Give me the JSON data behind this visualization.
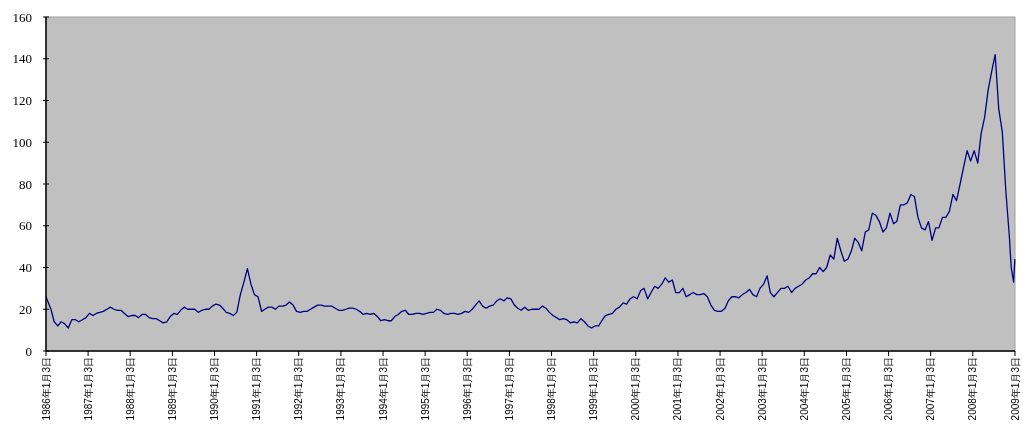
{
  "chart_data": {
    "type": "line",
    "x": [
      "1986-01-03",
      "1986-02-15",
      "1986-03-15",
      "1986-04-15",
      "1986-05-15",
      "1986-06-15",
      "1986-07-15",
      "1986-08-15",
      "1986-09-15",
      "1986-10-15",
      "1986-11-15",
      "1986-12-15",
      "1987-01-15",
      "1987-02-15",
      "1987-03-15",
      "1987-04-15",
      "1987-05-15",
      "1987-06-15",
      "1987-07-15",
      "1987-08-15",
      "1987-09-15",
      "1987-10-15",
      "1987-11-15",
      "1987-12-15",
      "1988-01-15",
      "1988-02-15",
      "1988-03-15",
      "1988-04-15",
      "1988-05-15",
      "1988-06-15",
      "1988-07-15",
      "1988-08-15",
      "1988-09-15",
      "1988-10-15",
      "1988-11-15",
      "1988-12-15",
      "1989-01-15",
      "1989-02-15",
      "1989-03-15",
      "1989-04-15",
      "1989-05-15",
      "1989-06-15",
      "1989-07-15",
      "1989-08-15",
      "1989-09-15",
      "1989-10-15",
      "1989-11-15",
      "1989-12-15",
      "1990-01-15",
      "1990-02-15",
      "1990-03-15",
      "1990-04-15",
      "1990-05-15",
      "1990-06-15",
      "1990-07-15",
      "1990-08-15",
      "1990-09-15",
      "1990-10-15",
      "1990-11-15",
      "1990-12-15",
      "1991-01-15",
      "1991-02-15",
      "1991-03-15",
      "1991-04-15",
      "1991-05-15",
      "1991-06-15",
      "1991-07-15",
      "1991-08-15",
      "1991-09-15",
      "1991-10-15",
      "1991-11-15",
      "1991-12-15",
      "1992-01-15",
      "1992-02-15",
      "1992-03-15",
      "1992-04-15",
      "1992-05-15",
      "1992-06-15",
      "1992-07-15",
      "1992-08-15",
      "1992-09-15",
      "1992-10-15",
      "1992-11-15",
      "1992-12-15",
      "1993-01-15",
      "1993-02-15",
      "1993-03-15",
      "1993-04-15",
      "1993-05-15",
      "1993-06-15",
      "1993-07-15",
      "1993-08-15",
      "1993-09-15",
      "1993-10-15",
      "1993-11-15",
      "1993-12-15",
      "1994-01-15",
      "1994-02-15",
      "1994-03-15",
      "1994-04-15",
      "1994-05-15",
      "1994-06-15",
      "1994-07-15",
      "1994-08-15",
      "1994-09-15",
      "1994-10-15",
      "1994-11-15",
      "1994-12-15",
      "1995-01-15",
      "1995-02-15",
      "1995-03-15",
      "1995-04-15",
      "1995-05-15",
      "1995-06-15",
      "1995-07-15",
      "1995-08-15",
      "1995-09-15",
      "1995-10-15",
      "1995-11-15",
      "1995-12-15",
      "1996-01-15",
      "1996-02-15",
      "1996-03-15",
      "1996-04-15",
      "1996-05-15",
      "1996-06-15",
      "1996-07-15",
      "1996-08-15",
      "1996-09-15",
      "1996-10-15",
      "1996-11-15",
      "1996-12-15",
      "1997-01-15",
      "1997-02-15",
      "1997-03-15",
      "1997-04-15",
      "1997-05-15",
      "1997-06-15",
      "1997-07-15",
      "1997-08-15",
      "1997-09-15",
      "1997-10-15",
      "1997-11-15",
      "1997-12-15",
      "1998-01-15",
      "1998-02-15",
      "1998-03-15",
      "1998-04-15",
      "1998-05-15",
      "1998-06-15",
      "1998-07-15",
      "1998-08-15",
      "1998-09-15",
      "1998-10-15",
      "1998-11-15",
      "1998-12-15",
      "1999-01-15",
      "1999-02-15",
      "1999-03-15",
      "1999-04-15",
      "1999-05-15",
      "1999-06-15",
      "1999-07-15",
      "1999-08-15",
      "1999-09-15",
      "1999-10-15",
      "1999-11-15",
      "1999-12-15",
      "2000-01-15",
      "2000-02-15",
      "2000-03-15",
      "2000-04-15",
      "2000-05-15",
      "2000-06-15",
      "2000-07-15",
      "2000-08-15",
      "2000-09-15",
      "2000-10-15",
      "2000-11-15",
      "2000-12-15",
      "2001-01-15",
      "2001-02-15",
      "2001-03-15",
      "2001-04-15",
      "2001-05-15",
      "2001-06-15",
      "2001-07-15",
      "2001-08-15",
      "2001-09-15",
      "2001-10-15",
      "2001-11-15",
      "2001-12-15",
      "2002-01-15",
      "2002-02-15",
      "2002-03-15",
      "2002-04-15",
      "2002-05-15",
      "2002-06-15",
      "2002-07-15",
      "2002-08-15",
      "2002-09-15",
      "2002-10-15",
      "2002-11-15",
      "2002-12-15",
      "2003-01-15",
      "2003-02-15",
      "2003-03-15",
      "2003-04-15",
      "2003-05-15",
      "2003-06-15",
      "2003-07-15",
      "2003-08-15",
      "2003-09-15",
      "2003-10-15",
      "2003-11-15",
      "2003-12-15",
      "2004-01-15",
      "2004-02-15",
      "2004-03-15",
      "2004-04-15",
      "2004-05-15",
      "2004-06-15",
      "2004-07-15",
      "2004-08-15",
      "2004-09-15",
      "2004-10-15",
      "2004-11-15",
      "2004-12-15",
      "2005-01-15",
      "2005-02-15",
      "2005-03-15",
      "2005-04-15",
      "2005-05-15",
      "2005-06-15",
      "2005-07-15",
      "2005-08-15",
      "2005-09-15",
      "2005-10-15",
      "2005-11-15",
      "2005-12-15",
      "2006-01-15",
      "2006-02-15",
      "2006-03-15",
      "2006-04-15",
      "2006-05-15",
      "2006-06-15",
      "2006-07-15",
      "2006-08-15",
      "2006-09-15",
      "2006-10-15",
      "2006-11-15",
      "2006-12-15",
      "2007-01-15",
      "2007-02-15",
      "2007-03-15",
      "2007-04-15",
      "2007-05-15",
      "2007-06-15",
      "2007-07-15",
      "2007-08-15",
      "2007-09-15",
      "2007-10-15",
      "2007-11-15",
      "2007-12-15",
      "2008-01-15",
      "2008-02-15",
      "2008-03-15",
      "2008-04-15",
      "2008-05-15",
      "2008-06-15",
      "2008-07-15",
      "2008-08-15",
      "2008-09-15",
      "2008-10-15",
      "2008-11-15",
      "2008-12-01",
      "2008-12-22",
      "2009-01-02"
    ],
    "series": [
      {
        "color": "#000080",
        "values": [
          26,
          20,
          14,
          12,
          14,
          13,
          11,
          15,
          15,
          14,
          15,
          16,
          18,
          17,
          18,
          18.5,
          19,
          20,
          21,
          20,
          19.5,
          19.5,
          18,
          16.5,
          17,
          17,
          16,
          17.5,
          17.5,
          16,
          15.5,
          15.5,
          14.5,
          13.5,
          14,
          16.5,
          18,
          17.5,
          19.5,
          21,
          20,
          20,
          20,
          18.5,
          19.5,
          20,
          20,
          21.5,
          22.5,
          22,
          20.5,
          18.5,
          18,
          17,
          18.5,
          27,
          33,
          39.5,
          32,
          27,
          26,
          19,
          20,
          21,
          21,
          20,
          21.5,
          21.5,
          22,
          23.5,
          22,
          19,
          18.5,
          19,
          19,
          20,
          21,
          22,
          22,
          21.5,
          21.5,
          21.5,
          20.5,
          19.5,
          19.5,
          20,
          20.5,
          20.5,
          20,
          19,
          17.5,
          18,
          17.5,
          18,
          16.5,
          14.5,
          15,
          14.5,
          14.5,
          16.5,
          17.5,
          19,
          19.5,
          17.5,
          17.5,
          18,
          18,
          17.5,
          18,
          18.5,
          18.5,
          20,
          19.5,
          18,
          17.5,
          18,
          18,
          17.5,
          18,
          19,
          18.5,
          20,
          22,
          24,
          21.5,
          20.5,
          21.5,
          22,
          24,
          25,
          24,
          25.5,
          25,
          22,
          20.5,
          19.5,
          21,
          19.5,
          20,
          20,
          20,
          21.5,
          20.5,
          18.5,
          17,
          16,
          15,
          15.5,
          15,
          13.5,
          14,
          13.5,
          15.5,
          14,
          12,
          11,
          12,
          12,
          14.5,
          17,
          17.5,
          18,
          20,
          21,
          23,
          22.5,
          25,
          26,
          25,
          29,
          30,
          25,
          28,
          31,
          30,
          32,
          35,
          33,
          34,
          28,
          28,
          30,
          26,
          27,
          28,
          27,
          27,
          27.5,
          26,
          22,
          19.5,
          19,
          19,
          20.5,
          24,
          26,
          26,
          25.5,
          27,
          28,
          29.5,
          27,
          26,
          30,
          32,
          36,
          28,
          26,
          28,
          30,
          30,
          31,
          28,
          30,
          31,
          32,
          34,
          35,
          37,
          37,
          40,
          38,
          40,
          46,
          44,
          54,
          48,
          43,
          44,
          48,
          54,
          52,
          48,
          57,
          58,
          66,
          65,
          62,
          57,
          59,
          66,
          61,
          62,
          70,
          70,
          71,
          75,
          74,
          64,
          59,
          58,
          62,
          53,
          59,
          59,
          64,
          64,
          67,
          75,
          72,
          80,
          88,
          96,
          91,
          96,
          90,
          104,
          112,
          125,
          134,
          142,
          116,
          105,
          77,
          55,
          40,
          33,
          44
        ]
      }
    ],
    "xlim": [
      "1986-01-03",
      "2009-01-03"
    ],
    "xticks": [
      {
        "value": "1986-01-03",
        "label": "1986年1月3日"
      },
      {
        "value": "1987-01-03",
        "label": "1987年1月3日"
      },
      {
        "value": "1988-01-03",
        "label": "1988年1月3日"
      },
      {
        "value": "1989-01-03",
        "label": "1989年1月3日"
      },
      {
        "value": "1990-01-03",
        "label": "1990年1月3日"
      },
      {
        "value": "1991-01-03",
        "label": "1991年1月3日"
      },
      {
        "value": "1992-01-03",
        "label": "1992年1月3日"
      },
      {
        "value": "1993-01-03",
        "label": "1993年1月3日"
      },
      {
        "value": "1994-01-03",
        "label": "1994年1月3日"
      },
      {
        "value": "1995-01-03",
        "label": "1995年1月3日"
      },
      {
        "value": "1996-01-03",
        "label": "1996年1月3日"
      },
      {
        "value": "1997-01-03",
        "label": "1997年1月3日"
      },
      {
        "value": "1998-01-03",
        "label": "1998年1月3日"
      },
      {
        "value": "1999-01-03",
        "label": "1999年1月3日"
      },
      {
        "value": "2000-01-03",
        "label": "2000年1月3日"
      },
      {
        "value": "2001-01-03",
        "label": "2001年1月3日"
      },
      {
        "value": "2002-01-03",
        "label": "2002年1月3日"
      },
      {
        "value": "2003-01-03",
        "label": "2003年1月3日"
      },
      {
        "value": "2004-01-03",
        "label": "2004年1月3日"
      },
      {
        "value": "2005-01-03",
        "label": "2005年1月3日"
      },
      {
        "value": "2006-01-03",
        "label": "2006年1月3日"
      },
      {
        "value": "2007-01-03",
        "label": "2007年1月3日"
      },
      {
        "value": "2008-01-03",
        "label": "2008年1月3日"
      },
      {
        "value": "2009-01-03",
        "label": "2009年1月3日"
      }
    ],
    "ylim": [
      0,
      160
    ],
    "yticks": [
      0,
      20,
      40,
      60,
      80,
      100,
      120,
      140,
      160
    ],
    "grid": false,
    "marker": "none",
    "line_style": "solid"
  }
}
